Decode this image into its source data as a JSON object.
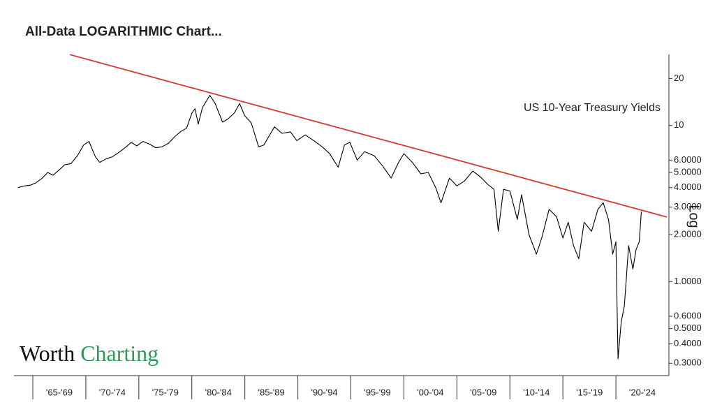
{
  "chart_data": {
    "type": "line",
    "title": "All-Data LOGARITHMIC Chart...",
    "annotation": "US 10-Year Treasury Yields",
    "log_label": "Log",
    "logo": [
      "Worth",
      "Charting"
    ],
    "log_scale": true,
    "xlim": [
      1963.55,
      2025
    ],
    "ylim": [
      0.25,
      30
    ],
    "xticks": [
      {
        "value": 1965,
        "label": "'65-'69"
      },
      {
        "value": 1970,
        "label": "'70-'74"
      },
      {
        "value": 1975,
        "label": "'75-'79"
      },
      {
        "value": 1980,
        "label": "'80-'84"
      },
      {
        "value": 1985,
        "label": "'85-'89"
      },
      {
        "value": 1990,
        "label": "'90-'94"
      },
      {
        "value": 1995,
        "label": "'95-'99"
      },
      {
        "value": 2000,
        "label": "'00-'04"
      },
      {
        "value": 2005,
        "label": "'05-'09"
      },
      {
        "value": 2010,
        "label": "'10-'14"
      },
      {
        "value": 2015,
        "label": "'15-'19"
      },
      {
        "value": 2020,
        "label": "'20-'24"
      }
    ],
    "yticks": [
      {
        "value": 0.3,
        "label": "0.3000"
      },
      {
        "value": 0.4,
        "label": "0.4000"
      },
      {
        "value": 0.5,
        "label": "0.5000"
      },
      {
        "value": 0.6,
        "label": "0.6000"
      },
      {
        "value": 1,
        "label": "1.0000"
      },
      {
        "value": 2,
        "label": "2.0000"
      },
      {
        "value": 3,
        "label": "3.0000"
      },
      {
        "value": 4,
        "label": "4.0000"
      },
      {
        "value": 5,
        "label": "5.0000"
      },
      {
        "value": 6,
        "label": "6.0000"
      },
      10,
      20
    ],
    "series": [
      {
        "color": "#000000",
        "x": [
          1963.6,
          1964.2,
          1964.8,
          1965.3,
          1965.9,
          1966.4,
          1966.9,
          1967.5,
          1968.0,
          1968.6,
          1969.2,
          1969.8,
          1970.3,
          1970.9,
          1971.3,
          1971.9,
          1972.5,
          1973.1,
          1973.7,
          1974.3,
          1974.8,
          1975.4,
          1976.0,
          1976.6,
          1977.2,
          1977.8,
          1978.4,
          1979.0,
          1979.5,
          1980.0,
          1980.3,
          1980.6,
          1981.0,
          1981.7,
          1982.2,
          1982.9,
          1983.4,
          1984.0,
          1984.5,
          1985.0,
          1985.6,
          1986.3,
          1986.8,
          1987.3,
          1987.8,
          1988.5,
          1989.3,
          1989.9,
          1990.7,
          1991.5,
          1992.3,
          1993.0,
          1993.8,
          1994.4,
          1994.9,
          1995.6,
          1996.3,
          1997.2,
          1998.0,
          1998.8,
          1999.5,
          2000.0,
          2000.8,
          2001.6,
          2002.3,
          2003.0,
          2003.5,
          2004.3,
          2005.0,
          2005.7,
          2006.5,
          2007.2,
          2007.9,
          2008.5,
          2008.9,
          2009.4,
          2010.0,
          2010.7,
          2011.1,
          2011.8,
          2012.5,
          2013.0,
          2013.7,
          2014.4,
          2015.0,
          2015.5,
          2016.0,
          2016.5,
          2017.0,
          2017.7,
          2018.3,
          2018.8,
          2019.3,
          2019.7,
          2020.0,
          2020.2,
          2020.5,
          2020.8,
          2021.2,
          2021.6,
          2021.9,
          2022.2,
          2022.4
        ],
        "values": [
          4.0,
          4.1,
          4.15,
          4.3,
          4.6,
          5.0,
          4.8,
          5.2,
          5.6,
          5.7,
          6.4,
          7.5,
          7.9,
          6.3,
          5.8,
          6.1,
          6.3,
          6.7,
          7.2,
          7.8,
          7.4,
          7.9,
          7.6,
          7.2,
          7.3,
          7.7,
          8.5,
          9.2,
          9.6,
          12.0,
          12.8,
          10.2,
          13.0,
          15.6,
          13.8,
          10.5,
          11.0,
          12.0,
          13.8,
          11.5,
          10.4,
          7.3,
          7.5,
          8.6,
          9.8,
          8.9,
          9.1,
          8.0,
          8.7,
          8.0,
          7.3,
          6.6,
          5.4,
          7.5,
          7.8,
          6.0,
          6.8,
          6.4,
          5.5,
          4.6,
          5.8,
          6.6,
          5.8,
          4.9,
          5.0,
          4.0,
          3.2,
          4.6,
          4.1,
          4.4,
          5.1,
          4.7,
          4.2,
          3.9,
          2.1,
          3.9,
          3.8,
          2.5,
          3.6,
          2.0,
          1.5,
          1.9,
          2.9,
          2.6,
          1.9,
          2.4,
          1.7,
          1.4,
          2.4,
          2.1,
          2.9,
          3.2,
          2.5,
          1.5,
          1.8,
          0.32,
          0.55,
          0.7,
          1.7,
          1.2,
          1.6,
          1.8,
          2.8
        ]
      }
    ],
    "trendline": {
      "color": "#d63a2f",
      "x": [
        1968.5,
        2024.8
      ],
      "values": [
        28.4,
        2.59
      ]
    }
  }
}
